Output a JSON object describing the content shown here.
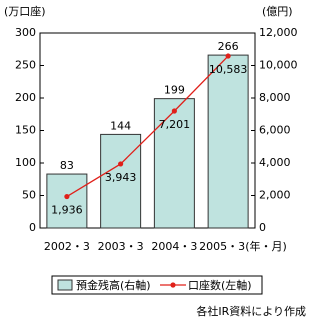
{
  "chart_data": {
    "type": "bar-line",
    "y_label": "(万口座)",
    "y2_label": "(億円)",
    "x_label": "(年・月)",
    "categories": [
      "2002・3",
      "2003・3",
      "2004・3",
      "2005・3"
    ],
    "ylim": [
      0,
      300
    ],
    "yticks": [
      0,
      50,
      100,
      150,
      200,
      250,
      300
    ],
    "y2lim": [
      0,
      12000
    ],
    "y2ticks": [
      0,
      {
        "value": 2000,
        "label": "2,000"
      },
      {
        "value": 4000,
        "label": "4,000"
      },
      {
        "value": 6000,
        "label": "6,000"
      },
      {
        "value": 8000,
        "label": "8,000"
      },
      {
        "value": 10000,
        "label": "10,000"
      },
      {
        "value": 12000,
        "label": "12,000"
      }
    ],
    "series": [
      {
        "name": "預金残高(右軸)",
        "kind": "bar",
        "color": "#bfe3df",
        "values": [
          83,
          144,
          199,
          266
        ]
      },
      {
        "name": "口座数(左軸)",
        "kind": "line",
        "axis": "y2",
        "color": "#e0201a",
        "values": [
          1936,
          3943,
          7201,
          10583
        ],
        "value_labels": [
          "1,936",
          "3,943",
          "7,201",
          "10,583"
        ]
      }
    ],
    "source": "各社IR資料により作成"
  }
}
